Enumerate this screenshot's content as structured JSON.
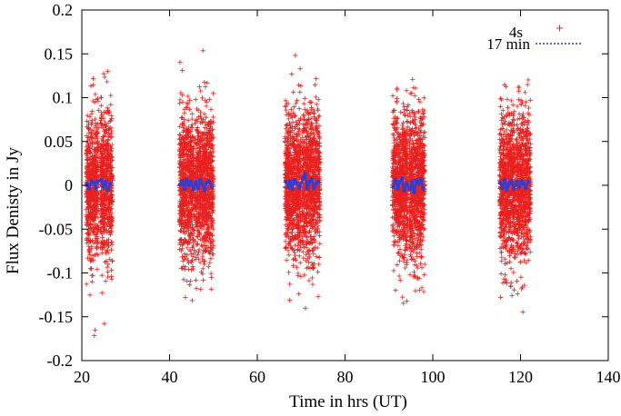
{
  "chart_data": {
    "type": "scatter",
    "title": "",
    "xlabel": "Time in hrs (UT)",
    "ylabel": "Flux Denisty in Jy",
    "xlim": [
      20,
      140
    ],
    "ylim": [
      -0.2,
      0.2
    ],
    "xticks": [
      20,
      40,
      60,
      80,
      100,
      120,
      140
    ],
    "xtick_labels": [
      "20",
      "40",
      "60",
      "80",
      "100",
      "120",
      "140"
    ],
    "yticks": [
      -0.2,
      -0.15,
      -0.1,
      -0.05,
      0,
      0.05,
      0.1,
      0.15,
      0.2
    ],
    "ytick_labels": [
      "-0.2",
      "-0.15",
      "-0.1",
      "-0.05",
      "0",
      "0.05",
      "0.1",
      "0.15",
      "0.2"
    ],
    "legend_position": "top-right",
    "series": [
      {
        "name": "4s",
        "marker": "plus",
        "color": "#e8201e",
        "description_values": "dense noise scatter, roughly uniform within about ±0.12 Jy with outliers to ±0.17 Jy",
        "segments": [
          {
            "x_start": 21.0,
            "x_end": 23.8
          },
          {
            "x_start": 24.2,
            "x_end": 27.0
          },
          {
            "x_start": 42.2,
            "x_end": 45.6
          },
          {
            "x_start": 45.8,
            "x_end": 50.0
          },
          {
            "x_start": 66.3,
            "x_end": 70.0
          },
          {
            "x_start": 70.2,
            "x_end": 74.3
          },
          {
            "x_start": 90.8,
            "x_end": 94.4
          },
          {
            "x_start": 94.6,
            "x_end": 98.2
          },
          {
            "x_start": 115.2,
            "x_end": 118.8
          },
          {
            "x_start": 119.0,
            "x_end": 122.3
          }
        ],
        "typical_spread": 0.09,
        "min": -0.172,
        "max": 0.168
      },
      {
        "name": "17 min",
        "marker": "dotted-line",
        "color": "#2b3fd6",
        "points": [
          [
            21.2,
            0.002
          ],
          [
            21.7,
            -0.004
          ],
          [
            22.2,
            0.005
          ],
          [
            22.7,
            0.003
          ],
          [
            23.2,
            -0.003
          ],
          [
            23.6,
            0.004
          ],
          [
            24.4,
            0.006
          ],
          [
            24.9,
            -0.002
          ],
          [
            25.4,
            0.004
          ],
          [
            25.9,
            -0.005
          ],
          [
            26.5,
            0.002
          ],
          [
            42.4,
            0.001
          ],
          [
            42.9,
            0.005
          ],
          [
            43.4,
            -0.004
          ],
          [
            43.9,
            0.006
          ],
          [
            44.4,
            0.0
          ],
          [
            44.9,
            0.004
          ],
          [
            45.4,
            -0.005
          ],
          [
            46.0,
            0.004
          ],
          [
            46.5,
            -0.003
          ],
          [
            47.0,
            0.006
          ],
          [
            47.5,
            0.001
          ],
          [
            48.0,
            -0.006
          ],
          [
            48.5,
            0.003
          ],
          [
            49.0,
            0.005
          ],
          [
            49.6,
            -0.002
          ],
          [
            66.5,
            0.004
          ],
          [
            67.0,
            -0.002
          ],
          [
            67.5,
            0.005
          ],
          [
            68.0,
            -0.004
          ],
          [
            68.5,
            0.006
          ],
          [
            69.0,
            0.002
          ],
          [
            69.6,
            -0.003
          ],
          [
            70.4,
            0.008
          ],
          [
            70.9,
            0.013
          ],
          [
            71.4,
            -0.004
          ],
          [
            71.9,
            0.004
          ],
          [
            72.4,
            0.007
          ],
          [
            72.9,
            -0.003
          ],
          [
            73.4,
            0.002
          ],
          [
            73.9,
            0.004
          ],
          [
            91.0,
            -0.002
          ],
          [
            91.5,
            0.006
          ],
          [
            92.0,
            -0.004
          ],
          [
            92.5,
            0.004
          ],
          [
            93.0,
            0.008
          ],
          [
            93.5,
            -0.006
          ],
          [
            94.1,
            0.002
          ],
          [
            94.8,
            -0.005
          ],
          [
            95.3,
            0.004
          ],
          [
            95.8,
            -0.008
          ],
          [
            96.3,
            0.006
          ],
          [
            96.8,
            0.002
          ],
          [
            97.3,
            0.007
          ],
          [
            97.8,
            -0.004
          ],
          [
            115.4,
            0.003
          ],
          [
            115.9,
            -0.003
          ],
          [
            116.4,
            0.006
          ],
          [
            116.9,
            -0.005
          ],
          [
            117.4,
            0.002
          ],
          [
            117.9,
            0.005
          ],
          [
            118.5,
            -0.004
          ],
          [
            119.2,
            0.004
          ],
          [
            119.7,
            -0.002
          ],
          [
            120.2,
            0.005
          ],
          [
            120.7,
            0.002
          ],
          [
            121.2,
            -0.003
          ],
          [
            121.7,
            0.004
          ]
        ]
      }
    ]
  }
}
